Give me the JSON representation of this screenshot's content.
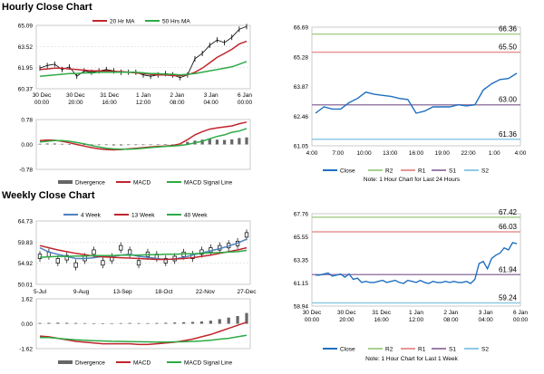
{
  "sections": {
    "hourly": "Hourly Close Chart",
    "weekly": "Weekly Close Chart"
  },
  "colors": {
    "ma1": "#c0262d",
    "ma2": "#2eaa45",
    "price": "#000000",
    "close": "#1f6fbf",
    "r2": "#a9d08e",
    "r1": "#e89595",
    "s1": "#9b7fa8",
    "s2": "#8ecae6",
    "divergence": "#666666",
    "macd": "#c0262d",
    "signal": "#2eaa45",
    "grid": "#d9d9d9",
    "ma4": "#4f81bd"
  },
  "chart_data": [
    {
      "id": "hourly-price",
      "type": "line",
      "title": "",
      "legend": [
        "20 Hr MA",
        "50 Hrs MA"
      ],
      "y_ticks": [
        "65.09",
        "63.52",
        "61.95",
        "60.37"
      ],
      "ylim": [
        60.37,
        65.09
      ],
      "x_ticks": [
        [
          "30 Dec",
          "00:00"
        ],
        [
          "30 Dec",
          "20:00"
        ],
        [
          "31 Dec",
          "16:00"
        ],
        [
          "1 Jan",
          "12:00"
        ],
        [
          "2 Jan",
          "08:00"
        ],
        [
          "3 Jan",
          "04:00"
        ],
        [
          "6 Jan",
          "00:00"
        ]
      ],
      "series": [
        {
          "name": "Price",
          "values": [
            61.9,
            62.1,
            62.2,
            61.8,
            62.0,
            61.3,
            61.7,
            61.6,
            61.7,
            61.8,
            61.7,
            61.6,
            61.6,
            61.6,
            61.4,
            61.3,
            61.4,
            61.5,
            61.4,
            61.2,
            61.4,
            62.6,
            63.0,
            63.6,
            64.0,
            63.8,
            64.2,
            64.8,
            65.0
          ]
        },
        {
          "name": "20 Hr MA",
          "values": [
            61.8,
            61.85,
            61.9,
            61.9,
            61.85,
            61.8,
            61.75,
            61.7,
            61.7,
            61.7,
            61.65,
            61.65,
            61.6,
            61.55,
            61.5,
            61.45,
            61.4,
            61.4,
            61.35,
            61.35,
            61.4,
            61.6,
            61.9,
            62.3,
            62.7,
            63.0,
            63.3,
            63.7,
            63.9
          ]
        },
        {
          "name": "50 Hrs MA",
          "values": [
            61.3,
            61.35,
            61.4,
            61.45,
            61.5,
            61.5,
            61.55,
            61.55,
            61.6,
            61.6,
            61.6,
            61.6,
            61.6,
            61.6,
            61.55,
            61.5,
            61.5,
            61.45,
            61.45,
            61.4,
            61.45,
            61.5,
            61.6,
            61.7,
            61.8,
            61.9,
            62.0,
            62.2,
            62.4
          ]
        }
      ]
    },
    {
      "id": "hourly-macd",
      "type": "bar",
      "title": "",
      "legend": [
        "Divergence",
        "MACD",
        "MACD Signal Line"
      ],
      "y_ticks": [
        "0.78",
        "0.00",
        "-0.78"
      ],
      "ylim": [
        -0.78,
        0.78
      ],
      "divergence": [
        0.02,
        0.03,
        0.03,
        0.02,
        0.01,
        0.0,
        -0.01,
        -0.02,
        -0.02,
        -0.02,
        -0.03,
        -0.03,
        -0.02,
        -0.02,
        -0.02,
        -0.01,
        0.0,
        0.01,
        0.0,
        0.02,
        0.08,
        0.12,
        0.15,
        0.18,
        0.15,
        0.14,
        0.16,
        0.2,
        0.22
      ],
      "macd": [
        0.12,
        0.14,
        0.13,
        0.1,
        0.05,
        0.0,
        -0.05,
        -0.1,
        -0.14,
        -0.16,
        -0.17,
        -0.16,
        -0.14,
        -0.12,
        -0.1,
        -0.08,
        -0.06,
        -0.05,
        -0.03,
        0.02,
        0.15,
        0.3,
        0.4,
        0.48,
        0.52,
        0.55,
        0.58,
        0.65,
        0.7
      ],
      "signal": [
        0.08,
        0.1,
        0.12,
        0.12,
        0.1,
        0.06,
        0.02,
        -0.03,
        -0.08,
        -0.12,
        -0.14,
        -0.15,
        -0.15,
        -0.14,
        -0.12,
        -0.1,
        -0.08,
        -0.06,
        -0.05,
        -0.03,
        0.0,
        0.05,
        0.1,
        0.18,
        0.25,
        0.3,
        0.38,
        0.42,
        0.5
      ]
    },
    {
      "id": "hourly-close",
      "type": "line",
      "title": "",
      "legend": [
        "Close",
        "R2",
        "R1",
        "S1",
        "S2"
      ],
      "y_ticks": [
        "66.69",
        "65.28",
        "63.87",
        "62.46",
        "61.05"
      ],
      "ylim": [
        61.05,
        66.69
      ],
      "x_ticks": [
        "4:00",
        "7:00",
        "10:00",
        "13:00",
        "16:00",
        "19:00",
        "22:00",
        "1:00",
        "4:00"
      ],
      "levels": [
        {
          "name": "R2",
          "value": 66.36,
          "label": "66.36"
        },
        {
          "name": "R1",
          "value": 65.5,
          "label": "65.50"
        },
        {
          "name": "S1",
          "value": 63.0,
          "label": "63.00"
        },
        {
          "name": "S2",
          "value": 61.36,
          "label": "61.36"
        }
      ],
      "close": [
        62.6,
        62.9,
        62.8,
        62.8,
        63.1,
        63.3,
        63.6,
        63.5,
        63.45,
        63.4,
        63.3,
        63.25,
        62.6,
        62.7,
        62.9,
        62.9,
        62.9,
        63.0,
        62.95,
        63.0,
        63.7,
        64.0,
        64.2,
        64.25,
        64.5
      ],
      "note": "Note: 1 Hour Chart for Last 24 Hours"
    },
    {
      "id": "weekly-price",
      "type": "line",
      "title": "",
      "legend": [
        "4 Week",
        "13 Week",
        "40 Week"
      ],
      "y_ticks": [
        "64.73",
        "59.83",
        "54.92",
        "50.01"
      ],
      "ylim": [
        50.01,
        64.73
      ],
      "x_ticks": [
        "5-Jul",
        "9-Aug",
        "13-Sep",
        "18-Oct",
        "22-Nov",
        "27-Dec"
      ],
      "series": [
        {
          "name": "Price",
          "values": [
            56.5,
            57.0,
            55.5,
            56.2,
            54.5,
            56.0,
            57.5,
            55.0,
            56.0,
            58.5,
            57.5,
            55.0,
            57.0,
            56.5,
            55.5,
            56.0,
            57.0,
            56.5,
            57.5,
            58.0,
            58.5,
            59.0,
            59.5,
            61.5
          ]
        },
        {
          "name": "4 Week",
          "values": [
            58.5,
            57.5,
            57.0,
            56.5,
            56.0,
            56.0,
            56.2,
            56.5,
            56.5,
            56.8,
            57.0,
            56.5,
            56.3,
            56.0,
            55.8,
            55.9,
            56.3,
            56.8,
            57.3,
            57.8,
            58.3,
            58.9,
            59.6,
            60.5
          ]
        },
        {
          "name": "13 Week",
          "values": [
            59.0,
            58.5,
            58.0,
            57.6,
            57.2,
            56.9,
            56.6,
            56.4,
            56.3,
            56.2,
            56.1,
            56.0,
            55.9,
            55.8,
            55.8,
            55.9,
            56.0,
            56.2,
            56.5,
            56.8,
            57.2,
            57.6,
            58.0,
            58.5
          ]
        },
        {
          "name": "40 Week",
          "values": [
            56.3,
            56.4,
            56.5,
            56.5,
            56.6,
            56.6,
            56.7,
            56.7,
            56.7,
            56.8,
            56.8,
            56.8,
            56.9,
            56.9,
            57.0,
            57.0,
            57.1,
            57.1,
            57.2,
            57.3,
            57.4,
            57.5,
            57.6,
            57.9
          ]
        }
      ]
    },
    {
      "id": "weekly-macd",
      "type": "bar",
      "title": "",
      "legend": [
        "Divergence",
        "MACD",
        "MACD Signal Line"
      ],
      "y_ticks": [
        "1.62",
        "0.00",
        "-1.62"
      ],
      "ylim": [
        -1.62,
        1.62
      ],
      "divergence": [
        0.05,
        0.06,
        0.07,
        0.06,
        0.05,
        0.04,
        0.03,
        0.02,
        0.03,
        0.04,
        0.05,
        0.04,
        0.04,
        0.05,
        0.06,
        0.08,
        0.1,
        0.12,
        0.15,
        0.2,
        0.3,
        0.4,
        0.5,
        0.7
      ],
      "macd": [
        -0.8,
        -0.85,
        -0.95,
        -1.05,
        -1.15,
        -1.2,
        -1.25,
        -1.3,
        -1.3,
        -1.3,
        -1.3,
        -1.35,
        -1.35,
        -1.3,
        -1.25,
        -1.2,
        -1.1,
        -1.0,
        -0.85,
        -0.7,
        -0.5,
        -0.3,
        -0.1,
        0.1
      ],
      "signal": [
        -0.9,
        -0.9,
        -0.95,
        -1.0,
        -1.05,
        -1.08,
        -1.1,
        -1.12,
        -1.14,
        -1.15,
        -1.16,
        -1.17,
        -1.18,
        -1.19,
        -1.19,
        -1.18,
        -1.17,
        -1.15,
        -1.12,
        -1.08,
        -1.0,
        -0.95,
        -0.85,
        -0.75
      ]
    },
    {
      "id": "weekly-close",
      "type": "line",
      "title": "",
      "legend": [
        "Close",
        "R2",
        "R1",
        "S1",
        "S2"
      ],
      "y_ticks": [
        "67.76",
        "65.55",
        "63.35",
        "61.15",
        "58.94"
      ],
      "ylim": [
        58.94,
        67.76
      ],
      "x_ticks": [
        [
          "30 Dec",
          "00:00"
        ],
        [
          "30 Dec",
          "20:00"
        ],
        [
          "31 Dec",
          "16:00"
        ],
        [
          "1 Jan",
          "12:00"
        ],
        [
          "2 Jan",
          "08:00"
        ],
        [
          "3 Jan",
          "04:00"
        ],
        [
          "6 Jan",
          "00:00"
        ]
      ],
      "levels": [
        {
          "name": "R2",
          "value": 67.42,
          "label": "67.42"
        },
        {
          "name": "R1",
          "value": 66.03,
          "label": "66.03"
        },
        {
          "name": "S1",
          "value": 61.94,
          "label": "61.94"
        },
        {
          "name": "S2",
          "value": 59.24,
          "label": "59.24"
        }
      ],
      "close": [
        61.9,
        61.9,
        62.0,
        62.1,
        61.8,
        61.9,
        62.0,
        61.7,
        62.0,
        61.5,
        61.6,
        61.2,
        61.3,
        61.2,
        61.2,
        61.3,
        61.4,
        61.2,
        61.3,
        61.4,
        61.2,
        61.1,
        61.4,
        61.3,
        61.2,
        61.4,
        61.2,
        61.1,
        61.3,
        61.2,
        61.2,
        61.3,
        61.2,
        61.3,
        61.2,
        61.2,
        61.3,
        61.1,
        61.5,
        63.0,
        63.2,
        62.5,
        63.5,
        63.8,
        64.0,
        64.5,
        64.3,
        65.0,
        64.9
      ],
      "note": "Note: 1 Hour Chart for Last 1 Week"
    }
  ]
}
